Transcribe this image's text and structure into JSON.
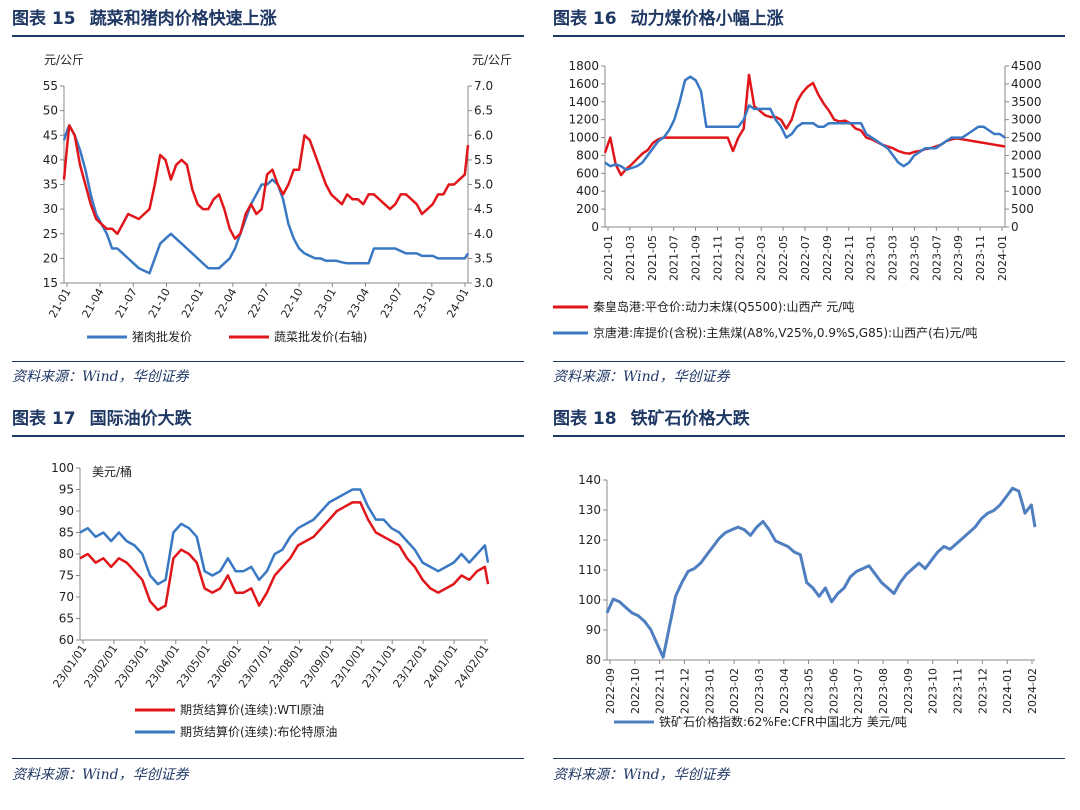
{
  "source_text": "资料来源：Wind，华创证券",
  "panels": [
    {
      "title_num": "图表 15",
      "title_text": "蔬菜和猪肉价格快速上涨",
      "source": "资料来源：Wind，华创证券"
    },
    {
      "title_num": "图表 16",
      "title_text": "动力煤价格小幅上涨",
      "source": "资料来源：Wind，华创证券"
    },
    {
      "title_num": "图表 17",
      "title_text": "国际油价大跌",
      "source": "资料来源：Wind，华创证券"
    },
    {
      "title_num": "图表 18",
      "title_text": "铁矿石价格大跌",
      "source": "资料来源：Wind，华创证券"
    }
  ],
  "colors": {
    "red": "#e0161b",
    "blue": "#3a78c4",
    "steel": "#4f7fc0",
    "navy": "#1f3864"
  },
  "chart_data": [
    {
      "type": "line",
      "title": "蔬菜和猪肉价格快速上涨",
      "unit_left": "元/公斤",
      "unit_right": "元/公斤",
      "ylim_left": [
        15,
        55
      ],
      "ylim_right": [
        3.0,
        7.0
      ],
      "yticks_left": [
        "15",
        "20",
        "25",
        "30",
        "35",
        "40",
        "45",
        "50",
        "55"
      ],
      "yticks_right": [
        "3.0",
        "3.5",
        "4.0",
        "4.5",
        "5.0",
        "5.5",
        "6.0",
        "6.5",
        "7.0"
      ],
      "xticks": [
        "21-01",
        "21-04",
        "21-07",
        "21-10",
        "22-01",
        "22-04",
        "22-07",
        "22-10",
        "23-01",
        "23-04",
        "23-07",
        "23-10",
        "24-01"
      ],
      "x": [
        0,
        0.3,
        0.5,
        1,
        1.5,
        2,
        2.5,
        3,
        3.5,
        4,
        4.5,
        5,
        5.5,
        6,
        6.5,
        7,
        7.5,
        8,
        8.5,
        9,
        9.5,
        10,
        10.5,
        11,
        11.5,
        12,
        12.5,
        13,
        13.5,
        14,
        14.5,
        15,
        15.5,
        16,
        16.5,
        17,
        17.5,
        18,
        18.5,
        19,
        19.5,
        20,
        20.5,
        21,
        21.5,
        22,
        22.5,
        23,
        23.5,
        24,
        24.5,
        25,
        25.5,
        26,
        26.5,
        27,
        27.5,
        28,
        28.5,
        29,
        29.5,
        30,
        30.5,
        31,
        31.5,
        32,
        32.5,
        33,
        33.5,
        34,
        34.5,
        35,
        35.5,
        36,
        36.5,
        37,
        37.5,
        37.8
      ],
      "series": [
        {
          "name": "猪肉批发价",
          "axis": "left",
          "values": [
            44,
            46,
            47,
            45,
            42,
            38,
            33,
            29,
            27,
            25,
            22,
            22,
            21,
            20,
            19,
            18,
            17.5,
            17,
            20,
            23,
            24,
            25,
            24,
            23,
            22,
            21,
            20,
            19,
            18,
            18,
            18,
            19,
            20,
            22,
            25,
            28,
            31,
            33,
            35,
            35,
            36,
            35,
            32,
            27,
            24,
            22,
            21,
            20.5,
            20,
            20,
            19.5,
            19.5,
            19.5,
            19.2,
            19,
            19,
            19,
            19,
            19,
            22,
            22,
            22,
            22,
            22,
            21.5,
            21,
            21,
            21,
            20.5,
            20.5,
            20.5,
            20,
            20,
            20,
            20,
            20,
            20,
            21
          ]
        },
        {
          "name": "蔬菜批发价(右轴)",
          "axis": "right",
          "values": [
            5.1,
            5.8,
            6.2,
            6.0,
            5.4,
            5.0,
            4.6,
            4.3,
            4.2,
            4.1,
            4.1,
            4.0,
            4.2,
            4.4,
            4.35,
            4.3,
            4.4,
            4.5,
            5.0,
            5.6,
            5.5,
            5.1,
            5.4,
            5.5,
            5.4,
            4.9,
            4.6,
            4.5,
            4.5,
            4.7,
            4.8,
            4.5,
            4.1,
            3.9,
            4.0,
            4.4,
            4.6,
            4.4,
            4.5,
            5.2,
            5.3,
            5.0,
            4.8,
            5.0,
            5.3,
            5.3,
            6.0,
            5.9,
            5.6,
            5.3,
            5.0,
            4.8,
            4.7,
            4.6,
            4.8,
            4.7,
            4.7,
            4.6,
            4.8,
            4.8,
            4.7,
            4.6,
            4.5,
            4.6,
            4.8,
            4.8,
            4.7,
            4.6,
            4.4,
            4.5,
            4.6,
            4.8,
            4.8,
            5.0,
            5.0,
            5.1,
            5.2,
            5.8
          ]
        }
      ]
    },
    {
      "type": "line",
      "title": "动力煤价格小幅上涨",
      "ylim_left": [
        0,
        1800
      ],
      "ylim_right": [
        0,
        4500
      ],
      "yticks_left": [
        "0",
        "200",
        "400",
        "600",
        "800",
        "1000",
        "1200",
        "1400",
        "1600",
        "1800"
      ],
      "yticks_right": [
        "0",
        "500",
        "1000",
        "1500",
        "2000",
        "2500",
        "3000",
        "3500",
        "4000",
        "4500"
      ],
      "xticks": [
        "2021-01",
        "2021-03",
        "2021-05",
        "2021-07",
        "2021-09",
        "2021-11",
        "2022-01",
        "2022-03",
        "2022-05",
        "2022-07",
        "2022-09",
        "2022-11",
        "2023-01",
        "2023-03",
        "2023-05",
        "2023-07",
        "2023-09",
        "2023-11",
        "2024-01"
      ],
      "x": [
        0,
        0.5,
        1,
        1.5,
        2,
        2.5,
        3,
        3.5,
        4,
        4.5,
        5,
        5.5,
        6,
        6.5,
        7,
        7.5,
        8,
        8.5,
        9,
        9.5,
        10,
        10.5,
        11,
        11.5,
        12,
        12.5,
        13,
        13.5,
        14,
        14.5,
        15,
        15.5,
        16,
        16.5,
        17,
        17.5,
        18,
        18.5,
        19,
        19.5,
        20,
        20.5,
        21,
        21.5,
        22,
        22.5,
        23,
        23.5,
        24,
        24.5,
        25,
        25.5,
        26,
        26.5,
        27,
        27.5,
        28,
        28.5,
        29,
        29.5,
        30,
        30.5,
        31,
        31.5,
        32,
        32.5,
        33,
        33.5,
        34,
        34.5,
        35,
        35.5,
        36,
        36.5,
        37,
        37.5
      ],
      "series": [
        {
          "name": "秦皇岛港:平仓价:动力末煤(Q5500):山西产 元/吨",
          "axis": "left",
          "values": [
            830,
            1000,
            700,
            580,
            650,
            700,
            760,
            820,
            860,
            940,
            980,
            1000,
            1000,
            1000,
            1000,
            1000,
            1000,
            1000,
            1000,
            1000,
            1000,
            1000,
            1000,
            1000,
            850,
            1000,
            1100,
            1700,
            1350,
            1300,
            1250,
            1230,
            1230,
            1200,
            1100,
            1200,
            1400,
            1500,
            1570,
            1610,
            1480,
            1380,
            1300,
            1200,
            1180,
            1190,
            1160,
            1100,
            1080,
            1000,
            980,
            950,
            920,
            900,
            880,
            850,
            830,
            820,
            840,
            850,
            870,
            880,
            900,
            920,
            960,
            980,
            990,
            980,
            970,
            960,
            950,
            940,
            930,
            920,
            910,
            900
          ]
        },
        {
          "name": "京唐港:库提价(含税):主焦煤(A8%,V25%,0.9%S,G85):山西产(右)元/吨",
          "axis": "right",
          "values": [
            1800,
            1700,
            1750,
            1700,
            1600,
            1650,
            1700,
            1800,
            2000,
            2200,
            2400,
            2500,
            2700,
            3000,
            3500,
            4100,
            4200,
            4100,
            3800,
            2800,
            2800,
            2800,
            2800,
            2800,
            2800,
            2800,
            3000,
            3400,
            3300,
            3300,
            3300,
            3300,
            3000,
            2800,
            2500,
            2600,
            2800,
            2900,
            2900,
            2900,
            2800,
            2800,
            2900,
            2900,
            2900,
            2900,
            2900,
            2900,
            2900,
            2600,
            2500,
            2400,
            2300,
            2200,
            2000,
            1800,
            1700,
            1800,
            2000,
            2100,
            2200,
            2200,
            2200,
            2300,
            2400,
            2500,
            2500,
            2500,
            2600,
            2700,
            2800,
            2800,
            2700,
            2600,
            2600,
            2500
          ]
        }
      ]
    },
    {
      "type": "line",
      "title": "国际油价大跌",
      "unit_left": "美元/桶",
      "ylim_left": [
        60,
        100
      ],
      "yticks_left": [
        "60",
        "65",
        "70",
        "75",
        "80",
        "85",
        "90",
        "95",
        "100"
      ],
      "xticks": [
        "23/01/01",
        "23/02/01",
        "23/03/01",
        "23/04/01",
        "23/05/01",
        "23/06/01",
        "23/07/01",
        "23/08/01",
        "23/09/01",
        "23/10/01",
        "23/11/01",
        "23/12/01",
        "24/01/01",
        "24/02/01"
      ],
      "x": [
        0,
        0.25,
        0.5,
        0.75,
        1,
        1.25,
        1.5,
        1.75,
        2,
        2.25,
        2.5,
        2.75,
        3,
        3.25,
        3.5,
        3.75,
        4,
        4.25,
        4.5,
        4.75,
        5,
        5.25,
        5.5,
        5.75,
        6,
        6.25,
        6.5,
        6.75,
        7,
        7.25,
        7.5,
        7.75,
        8,
        8.25,
        8.5,
        8.75,
        9,
        9.25,
        9.5,
        9.75,
        10,
        10.25,
        10.5,
        10.75,
        11,
        11.25,
        11.5,
        11.75,
        12,
        12.25,
        12.5,
        12.75,
        13,
        13.1
      ],
      "series": [
        {
          "name": "期货结算价(连续):WTI原油",
          "axis": "left",
          "values": [
            79,
            80,
            78,
            79,
            77,
            79,
            78,
            76,
            74,
            69,
            67,
            68,
            79,
            81,
            80,
            78,
            72,
            71,
            72,
            75,
            71,
            71,
            72,
            68,
            71,
            75,
            77,
            79,
            82,
            83,
            84,
            86,
            88,
            90,
            91,
            92,
            92,
            88,
            85,
            84,
            83,
            82,
            79,
            77,
            74,
            72,
            71,
            72,
            73,
            75,
            74,
            76,
            77,
            73
          ]
        },
        {
          "name": "期货结算价(连续):布伦特原油",
          "axis": "left",
          "values": [
            85,
            86,
            84,
            85,
            83,
            85,
            83,
            82,
            80,
            75,
            73,
            74,
            85,
            87,
            86,
            84,
            76,
            75,
            76,
            79,
            76,
            76,
            77,
            74,
            76,
            80,
            81,
            84,
            86,
            87,
            88,
            90,
            92,
            93,
            94,
            95,
            95,
            91,
            88,
            88,
            86,
            85,
            83,
            81,
            78,
            77,
            76,
            77,
            78,
            80,
            78,
            80,
            82,
            78
          ]
        }
      ]
    },
    {
      "type": "line",
      "title": "铁矿石价格大跌",
      "ylim_left": [
        80,
        145
      ],
      "yticks_left": [
        "80",
        "90",
        "100",
        "110",
        "120",
        "130",
        "140"
      ],
      "xticks": [
        "2022-09",
        "2022-10",
        "2022-11",
        "2022-12",
        "2023-01",
        "2023-02",
        "2023-03",
        "2023-04",
        "2023-05",
        "2023-06",
        "2023-07",
        "2023-08",
        "2023-09",
        "2023-10",
        "2023-11",
        "2023-12",
        "2024-01",
        "2024-02"
      ],
      "x": [
        0,
        0.25,
        0.5,
        0.75,
        1,
        1.25,
        1.5,
        1.75,
        2,
        2.25,
        2.5,
        2.75,
        3,
        3.25,
        3.5,
        3.75,
        4,
        4.25,
        4.5,
        4.75,
        5,
        5.25,
        5.5,
        5.75,
        6,
        6.25,
        6.5,
        6.75,
        7,
        7.25,
        7.5,
        7.75,
        8,
        8.25,
        8.5,
        8.75,
        9,
        9.25,
        9.5,
        9.75,
        10,
        10.25,
        10.5,
        10.75,
        11,
        11.25,
        11.5,
        11.75,
        12,
        12.25,
        12.5,
        12.75,
        13,
        13.25,
        13.5,
        13.75,
        14,
        14.25,
        14.5,
        14.75,
        15,
        15.25,
        15.5,
        15.75,
        16,
        16.25,
        16.5,
        16.75,
        17,
        17.15
      ],
      "series": [
        {
          "name": "铁矿石价格指数:62%Fe:CFR中国北方 美元/吨",
          "axis": "left",
          "values": [
            97,
            102,
            101,
            99,
            97,
            96,
            94,
            91,
            86,
            81,
            92,
            103,
            108,
            112,
            113,
            115,
            118,
            121,
            124,
            126,
            127,
            128,
            127,
            125,
            128,
            130,
            127,
            123,
            122,
            121,
            119,
            118,
            108,
            106,
            103,
            106,
            101,
            104,
            106,
            110,
            112,
            113,
            114,
            111,
            108,
            106,
            104,
            108,
            111,
            113,
            115,
            113,
            116,
            119,
            121,
            120,
            122,
            124,
            126,
            128,
            131,
            133,
            134,
            136,
            139,
            142,
            141,
            133,
            136,
            128
          ]
        }
      ]
    }
  ],
  "legends": {
    "c15": [
      "猪肉批发价",
      "蔬菜批发价(右轴)"
    ],
    "c16": [
      "秦皇岛港:平仓价:动力末煤(Q5500):山西产 元/吨",
      "京唐港:库提价(含税):主焦煤(A8%,V25%,0.9%S,G85):山西产(右)元/吨"
    ],
    "c17": [
      "期货结算价(连续):WTI原油",
      "期货结算价(连续):布伦特原油"
    ],
    "c18": [
      "铁矿石价格指数:62%Fe:CFR中国北方 美元/吨"
    ]
  }
}
